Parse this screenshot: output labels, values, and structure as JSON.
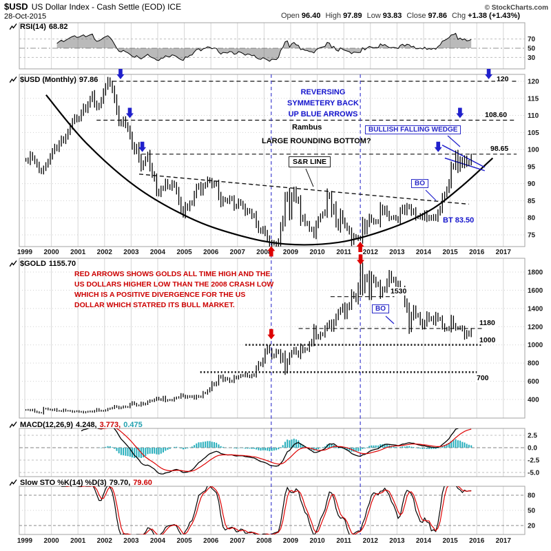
{
  "header": {
    "symbol": "$USD",
    "title": "US Dollar Index - Cash Settle (EOD) ICE",
    "date": "28-Oct-2015",
    "copyright": "© StockCharts.com",
    "quote": {
      "open_label": "Open",
      "open": "96.40",
      "high_label": "High",
      "high": "97.89",
      "low_label": "Low",
      "low": "93.83",
      "close_label": "Close",
      "close": "97.86",
      "chg_label": "Chg",
      "chg": "+1.38 (+1.43%)"
    }
  },
  "colors": {
    "blue": "#1414cc",
    "red": "#dd0000",
    "cyan": "#25aebc",
    "grid": "#d6d6d6",
    "frame": "#a0a0a0",
    "bars": "#000000",
    "signal": "#dd0000"
  },
  "panels": {
    "rsi": {
      "label": "RSI(14)",
      "value": "68.82",
      "yticks": [
        "70",
        "50",
        "30"
      ]
    },
    "usd": {
      "label": "$USD (Monthly)",
      "value": "97.86",
      "yticks": [
        "120",
        "115",
        "110",
        "105",
        "100",
        "95",
        "90",
        "85",
        "80",
        "75"
      ]
    },
    "gold": {
      "label": "$GOLD",
      "value": "1155.70",
      "yticks": [
        "1800",
        "1600",
        "1400",
        "1200",
        "1000",
        "800",
        "600",
        "400"
      ]
    },
    "macd": {
      "label": "MACD(12,26,9)",
      "v1": "4.248,",
      "v2": "3.773,",
      "v3": "0.475",
      "yticks": [
        "2.5",
        "0.0",
        "-2.5",
        "-5.0"
      ]
    },
    "sto": {
      "label": "Slow STO %K(14) %D(3)",
      "v1": "79.70,",
      "v2": "79.60",
      "yticks": [
        "80",
        "50",
        "20"
      ]
    }
  },
  "annotations": {
    "reversing": [
      "REVERSING",
      "SYMMETERY  BACK",
      "UP BLUE ARROWS"
    ],
    "rambus": "Rambus",
    "rounding": "LARGE ROUNDING BOTTOM?",
    "sr_line": "S&R LINE",
    "wedge": "BULLISH FALLING WEDGE",
    "bo_usd": "BO",
    "bo_gold": "BO",
    "bt": "BT 83.50",
    "lvl_120": "120",
    "lvl_10860": "108.60",
    "lvl_9865": "98.65",
    "lvl_1530": "1530",
    "lvl_1180": "1180",
    "lvl_1000": "1000",
    "lvl_700": "700",
    "gold_text": [
      "RED ARROWS SHOWS GOLDS ALL TIME HIGH AND THE",
      "US DOLLARS HIGHER LOW THAN THE 2008 CRASH LOW",
      "WHICH IS A POSITIVE DIVERGENCE FOR THE US",
      "DOLLAR WHICH STATRED ITS BULL MARKET."
    ]
  },
  "chart_data": {
    "type": "line",
    "subtype": "multi-panel monthly financial chart (OHLC bars + indicators)",
    "x_axis": {
      "ticks": [
        "1999",
        "2000",
        "2001",
        "2002",
        "2003",
        "2004",
        "2005",
        "2006",
        "2007",
        "2008",
        "2009",
        "2010",
        "2011",
        "2012",
        "2013",
        "2014",
        "2015",
        "2016",
        "2017"
      ],
      "range_years": [
        1998.8,
        2017.8
      ]
    },
    "rsi": {
      "title": "RSI(14)",
      "period": 14,
      "last": 68.82,
      "computed_from": "usd.close",
      "ylim": [
        0,
        100
      ],
      "gridlines": [
        30,
        50,
        70
      ]
    },
    "usd": {
      "title": "$USD US Dollar Index (Monthly) - Cash Settle (EOD) ICE",
      "x_start_year": 1999,
      "interval": "month",
      "ylim": [
        71.6,
        122
      ],
      "close": [
        97.0,
        96.5,
        98.5,
        97.5,
        96.5,
        95.5,
        94.0,
        93.5,
        94.5,
        95.5,
        96.5,
        98.0,
        99.5,
        100.8,
        100.2,
        101.8,
        103.2,
        102.5,
        103.8,
        105.2,
        106.8,
        108.3,
        109.5,
        108.7,
        109.2,
        110.8,
        112.5,
        111.6,
        113.2,
        114.8,
        116.2,
        113.5,
        112.3,
        113.0,
        114.5,
        116.8,
        118.5,
        120.3,
        119.2,
        117.5,
        114.8,
        111.5,
        108.2,
        107.5,
        108.8,
        107.2,
        106.0,
        104.0,
        101.2,
        99.5,
        100.8,
        97.5,
        94.8,
        96.0,
        97.2,
        98.5,
        95.0,
        92.8,
        91.5,
        87.8,
        87.0,
        88.5,
        88.8,
        90.5,
        89.2,
        88.8,
        90.2,
        89.5,
        87.8,
        85.0,
        82.5,
        81.0,
        83.5,
        82.8,
        84.2,
        84.5,
        86.8,
        88.9,
        89.5,
        87.5,
        89.2,
        89.8,
        91.2,
        90.8,
        89.5,
        90.2,
        89.8,
        86.5,
        84.2,
        85.5,
        85.2,
        84.8,
        85.8,
        85.5,
        83.2,
        83.5,
        84.8,
        84.2,
        83.2,
        81.5,
        82.2,
        81.8,
        80.5,
        80.8,
        78.2,
        76.5,
        76.0,
        76.8,
        75.5,
        73.8,
        71.8,
        72.8,
        72.5,
        72.2,
        73.2,
        77.2,
        79.5,
        85.5,
        86.8,
        81.2,
        85.8,
        88.0,
        85.5,
        84.8,
        79.5,
        80.2,
        78.5,
        78.2,
        76.8,
        76.5,
        75.0,
        77.9,
        79.5,
        80.5,
        81.2,
        81.8,
        86.8,
        86.2,
        81.8,
        83.2,
        78.8,
        77.2,
        81.2,
        79.2,
        77.8,
        76.9,
        75.9,
        73.0,
        74.6,
        74.3,
        73.9,
        74.1,
        78.6,
        76.2,
        78.3,
        80.2,
        79.3,
        78.7,
        79.0,
        78.8,
        83.0,
        81.6,
        82.7,
        81.2,
        79.9,
        80.0,
        80.2,
        79.8,
        79.2,
        81.9,
        83.0,
        81.7,
        83.4,
        83.1,
        81.5,
        82.1,
        80.2,
        80.2,
        80.7,
        80.0,
        81.3,
        79.7,
        80.2,
        79.8,
        80.4,
        79.8,
        81.5,
        82.7,
        85.9,
        86.9,
        88.3,
        90.3,
        94.8,
        95.3,
        98.4,
        94.6,
        96.9,
        95.5,
        97.3,
        95.8,
        96.3,
        97.86
      ],
      "hlines": [
        {
          "value": 120,
          "x1": 2002.3,
          "x2": 2017.5,
          "style": "dashed",
          "label": "120"
        },
        {
          "value": 108.6,
          "x1": 2001.7,
          "x2": 2017.5,
          "style": "dashed",
          "label": "108.60"
        },
        {
          "value": 98.65,
          "x1": 2003.4,
          "x2": 2017.5,
          "style": "dashed",
          "label": "98.65"
        }
      ],
      "sr_line": {
        "x1": 2003.3,
        "y1": 92.8,
        "x2": 2015.7,
        "y2": 84.0
      },
      "rounding_bottom": [
        [
          1999.8,
          116
        ],
        [
          2001.3,
          102
        ],
        [
          2003.2,
          89
        ],
        [
          2005.2,
          80
        ],
        [
          2007.0,
          75
        ],
        [
          2008.8,
          72.3
        ],
        [
          2010.8,
          72.8
        ],
        [
          2012.6,
          76.5
        ],
        [
          2014.2,
          82
        ],
        [
          2015.4,
          89
        ],
        [
          2016.6,
          97.5
        ]
      ],
      "wedge_lines": [
        [
          2014.7,
          101.3,
          2016.3,
          94.8
        ],
        [
          2014.8,
          97.5,
          2016.3,
          93.8
        ]
      ],
      "blue_arrows_down": [
        [
          2002.6,
          120
        ],
        [
          2002.95,
          108.6
        ],
        [
          2003.42,
          98.65
        ],
        [
          2016.45,
          120
        ],
        [
          2015.37,
          108.6
        ],
        [
          2014.55,
          98.65
        ]
      ],
      "red_arrows_up": [
        [
          2008.27,
          72.3
        ],
        [
          2011.62,
          73.6
        ]
      ],
      "vlines_years": [
        2008.27,
        2011.62
      ]
    },
    "gold": {
      "title": "$GOLD (Monthly)",
      "x_start_year": 1999,
      "interval": "month",
      "ylim": [
        196,
        1951
      ],
      "close": [
        285,
        287,
        280,
        287,
        268,
        261,
        255,
        255,
        299,
        300,
        291,
        288,
        283,
        293,
        276,
        275,
        272,
        288,
        276,
        277,
        273,
        264,
        269,
        272,
        264,
        266,
        257,
        263,
        267,
        270,
        265,
        274,
        293,
        278,
        274,
        276,
        282,
        296,
        301,
        308,
        326,
        318,
        304,
        312,
        323,
        316,
        319,
        347,
        367,
        350,
        334,
        336,
        361,
        346,
        354,
        375,
        388,
        384,
        398,
        416,
        402,
        395,
        423,
        387,
        393,
        395,
        391,
        412,
        420,
        425,
        453,
        438,
        422,
        435,
        428,
        435,
        414,
        437,
        429,
        433,
        473,
        470,
        495,
        517,
        575,
        561,
        582,
        644,
        653,
        613,
        632,
        623,
        599,
        603,
        646,
        636,
        651,
        664,
        661,
        677,
        659,
        650,
        665,
        672,
        743,
        795,
        783,
        833,
        923,
        971,
        933,
        871,
        885,
        930,
        918,
        833,
        884,
        724,
        814,
        884,
        919,
        952,
        916,
        883,
        975,
        934,
        953,
        953,
        1008,
        1040,
        1175,
        1097,
        1083,
        1118,
        1115,
        1179,
        1215,
        1244,
        1181,
        1246,
        1307,
        1359,
        1386,
        1421,
        1327,
        1411,
        1439,
        1556,
        1536,
        1502,
        1628,
        1826,
        1620,
        1722,
        1746,
        1564,
        1737,
        1711,
        1668,
        1664,
        1558,
        1604,
        1615,
        1685,
        1772,
        1719,
        1712,
        1675,
        1661,
        1588,
        1594,
        1469,
        1394,
        1192,
        1312,
        1394,
        1327,
        1323,
        1253,
        1202,
        1244,
        1326,
        1283,
        1291,
        1250,
        1322,
        1285,
        1285,
        1208,
        1173,
        1175,
        1184,
        1283,
        1213,
        1183,
        1184,
        1190,
        1172,
        1095,
        1134,
        1115,
        1155
      ],
      "hlines": [
        {
          "value": 1530,
          "x1": 2010.5,
          "x2": 2012.9,
          "style": "dashed",
          "label": "1530"
        },
        {
          "value": 1180,
          "x1": 2009.3,
          "x2": 2016.2,
          "style": "dashed",
          "label": "1180"
        },
        {
          "value": 1000,
          "x1": 2007.3,
          "x2": 2016.2,
          "style": "thick-dotted",
          "label": "1000"
        },
        {
          "value": 700,
          "x1": 2005.6,
          "x2": 2016.0,
          "style": "thick-dotted",
          "label": "700"
        }
      ],
      "red_arrows_down": [
        [
          2008.27,
          1060
        ],
        [
          2011.63,
          1880
        ]
      ]
    },
    "macd": {
      "title": "MACD(12,26,9)",
      "params": [
        12,
        26,
        9
      ],
      "last": [
        4.248,
        3.773,
        0.475
      ],
      "computed_from": "usd.close",
      "gridlines": [
        2.5,
        0,
        -2.5,
        -5
      ]
    },
    "sto": {
      "title": "Slow STO %K(14) %D(3)",
      "params": [
        14,
        3
      ],
      "last": [
        79.7,
        79.6
      ],
      "computed_from": "usd.close",
      "gridlines": [
        20,
        50,
        80
      ]
    }
  }
}
